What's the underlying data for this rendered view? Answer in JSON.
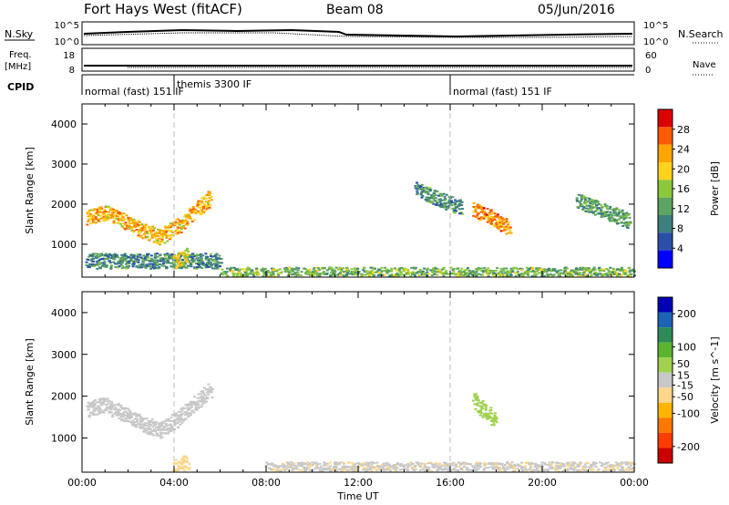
{
  "header": {
    "title": "Fort Hays West (fitACF)",
    "beam": "Beam 08",
    "date": "05/Jun/2016"
  },
  "status_panels": {
    "nsky": {
      "label": "N.Sky",
      "ticks": [
        "10^5",
        "10^0"
      ]
    },
    "nsearch": {
      "label": "N.Search",
      "ticks": [
        "10^5",
        "10^0"
      ]
    },
    "freq": {
      "label": "Freq.",
      "unit": "[MHz]",
      "ticks": [
        "18",
        "8"
      ]
    },
    "nave": {
      "label": "Nave",
      "ticks": [
        "60",
        "0"
      ]
    },
    "cpid": {
      "label": "CPID",
      "modes": [
        {
          "text": "normal (fast)  151  IF",
          "start_hour": 0
        },
        {
          "text": "themis 3300  IF",
          "start_hour": 4
        },
        {
          "text": "normal (fast)  151  IF",
          "start_hour": 16
        }
      ]
    }
  },
  "colors": {
    "power_scale": [
      "#0000ff",
      "#2a4fa8",
      "#3c7f7e",
      "#5da460",
      "#8cc83c",
      "#ffd21e",
      "#ffa500",
      "#ff5a00",
      "#dc0000"
    ],
    "velocity_scale": [
      "#cc0000",
      "#ff3c00",
      "#ff7800",
      "#ffb400",
      "#ffd68a",
      "#c8c8c8",
      "#a0d250",
      "#5ab432",
      "#2e8b57",
      "#1e64b4",
      "#0000b4"
    ]
  },
  "chart_data": [
    {
      "type": "heatmap",
      "name": "power",
      "xlabel": "",
      "ylabel": "Slant Range [km]",
      "xlim": [
        0,
        24
      ],
      "ylim": [
        180,
        4500
      ],
      "yticks": [
        1000,
        2000,
        3000,
        4000
      ],
      "colorbar": {
        "label": "Power [dB]",
        "ticks": [
          4,
          8,
          12,
          16,
          20,
          24,
          28
        ],
        "range": [
          0,
          32
        ]
      },
      "features": [
        {
          "desc": "arc band",
          "x": [
            0.2,
            1.0,
            1.8,
            2.6,
            3.4,
            4.2,
            5.0,
            5.6
          ],
          "y": [
            1700,
            1800,
            1600,
            1350,
            1200,
            1500,
            1900,
            2200
          ],
          "value": 22
        },
        {
          "desc": "near range band",
          "x": [
            0.2,
            6.0
          ],
          "y": [
            600,
            600
          ],
          "value": 10
        },
        {
          "desc": "themis echo",
          "x": [
            4.0,
            4.6
          ],
          "y": [
            600,
            750
          ],
          "value": 20
        },
        {
          "desc": "ground scatter floor",
          "x": [
            6.0,
            24.0
          ],
          "y": [
            250,
            250
          ],
          "value": 14
        },
        {
          "desc": "midday streak",
          "x": [
            14.5,
            16.5
          ],
          "y": [
            2400,
            1900
          ],
          "value": 10
        },
        {
          "desc": "evening patch",
          "x": [
            17.0,
            18.6
          ],
          "y": [
            1900,
            1400
          ],
          "value": 24
        },
        {
          "desc": "late evening patch",
          "x": [
            21.5,
            23.8
          ],
          "y": [
            2100,
            1600
          ],
          "value": 12
        }
      ]
    },
    {
      "type": "heatmap",
      "name": "velocity",
      "xlabel": "Time UT",
      "ylabel": "Slant Range [km]",
      "xlim": [
        0,
        24
      ],
      "ylim": [
        180,
        4500
      ],
      "xticks": [
        "00:00",
        "04:00",
        "08:00",
        "12:00",
        "16:00",
        "20:00",
        "00:00"
      ],
      "yticks": [
        1000,
        2000,
        3000,
        4000
      ],
      "colorbar": {
        "label": "Velocity [m s^-1]",
        "ticks": [
          200,
          100,
          50,
          15,
          -15,
          -50,
          -100,
          -200
        ],
        "range": [
          -250,
          250
        ]
      },
      "features": [
        {
          "desc": "arc band",
          "x": [
            0.2,
            1.0,
            1.8,
            2.6,
            3.4,
            4.2,
            5.0,
            5.6
          ],
          "y": [
            1700,
            1800,
            1600,
            1350,
            1200,
            1500,
            1900,
            2200
          ],
          "value": 0
        },
        {
          "desc": "themis echo",
          "x": [
            4.0,
            4.6
          ],
          "y": [
            300,
            450
          ],
          "value": -60
        },
        {
          "desc": "ground scatter floor",
          "x": [
            8.0,
            24.0
          ],
          "y": [
            250,
            250
          ],
          "value": -20
        },
        {
          "desc": "green streak",
          "x": [
            17.0,
            18.0
          ],
          "y": [
            1900,
            1400
          ],
          "value": 40
        }
      ]
    }
  ]
}
